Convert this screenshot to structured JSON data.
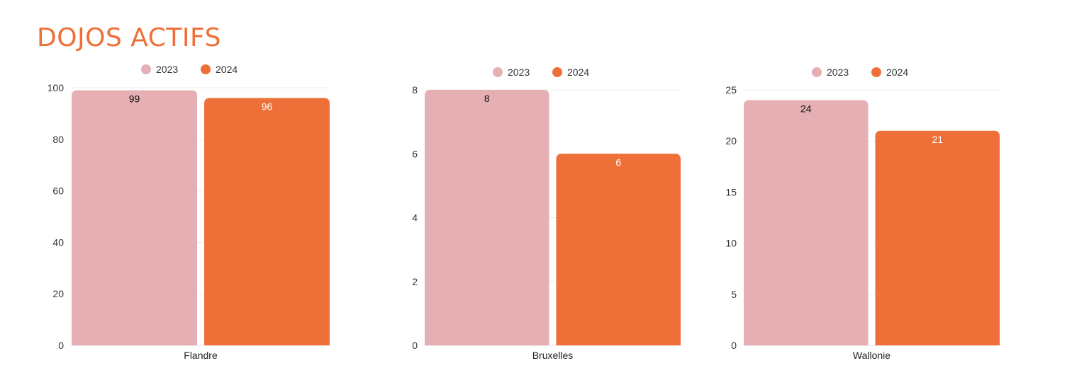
{
  "page": {
    "title": "DOJOS ACTIFS"
  },
  "colors": {
    "series_2023": "#E6AFB3",
    "series_2024": "#EE7038",
    "label_2023": "#111111",
    "label_2024": "#ffffff"
  },
  "chart_data": [
    {
      "type": "bar",
      "categories": [
        "Flandre"
      ],
      "series": [
        {
          "name": "2023",
          "values": [
            99
          ]
        },
        {
          "name": "2024",
          "values": [
            96
          ]
        }
      ],
      "ylim": [
        0,
        100
      ],
      "yticks": [
        0,
        20,
        40,
        60,
        80,
        100
      ],
      "legend": "top-center",
      "grid": true
    },
    {
      "type": "bar",
      "categories": [
        "Bruxelles"
      ],
      "series": [
        {
          "name": "2023",
          "values": [
            8
          ]
        },
        {
          "name": "2024",
          "values": [
            6
          ]
        }
      ],
      "ylim": [
        0,
        8
      ],
      "yticks": [
        0,
        2,
        4,
        6,
        8
      ],
      "legend": "top-center",
      "grid": true
    },
    {
      "type": "bar",
      "categories": [
        "Wallonie"
      ],
      "series": [
        {
          "name": "2023",
          "values": [
            24
          ]
        },
        {
          "name": "2024",
          "values": [
            21
          ]
        }
      ],
      "ylim": [
        0,
        25
      ],
      "yticks": [
        0,
        5,
        10,
        15,
        20,
        25
      ],
      "legend": "top-center",
      "grid": true
    }
  ]
}
